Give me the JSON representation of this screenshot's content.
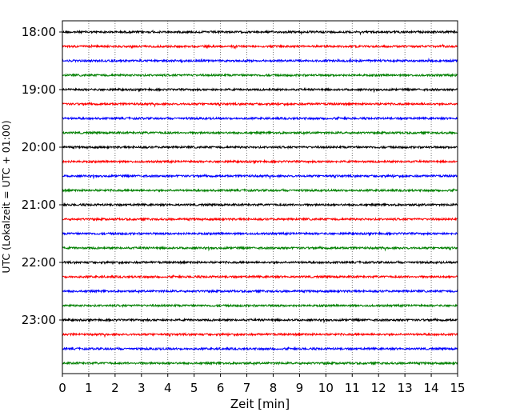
{
  "chart_data": {
    "type": "line",
    "subtype": "seismogram-dayplot",
    "xlabel": "Zeit  [min]",
    "ylabel": "UTC (Lokalzeit = UTC + 01:00)",
    "xlim": [
      0,
      15
    ],
    "xticks": [
      "0",
      "1",
      "2",
      "3",
      "4",
      "5",
      "6",
      "7",
      "8",
      "9",
      "10",
      "11",
      "12",
      "13",
      "14",
      "15"
    ],
    "yticks": [
      "18:00",
      "19:00",
      "20:00",
      "21:00",
      "22:00",
      "23:00"
    ],
    "grid": "vertical-dotted",
    "color_cycle": [
      "#000000",
      "#ff0000",
      "#0000ff",
      "#008000"
    ],
    "trace_interval_min": 15,
    "trace_starts": [
      "18:00",
      "18:15",
      "18:30",
      "18:45",
      "19:00",
      "19:15",
      "19:30",
      "19:45",
      "20:00",
      "20:15",
      "20:30",
      "20:45",
      "21:00",
      "21:15",
      "21:30",
      "21:45",
      "22:00",
      "22:15",
      "22:30",
      "22:45",
      "23:00",
      "23:15",
      "23:30",
      "23:45"
    ]
  }
}
